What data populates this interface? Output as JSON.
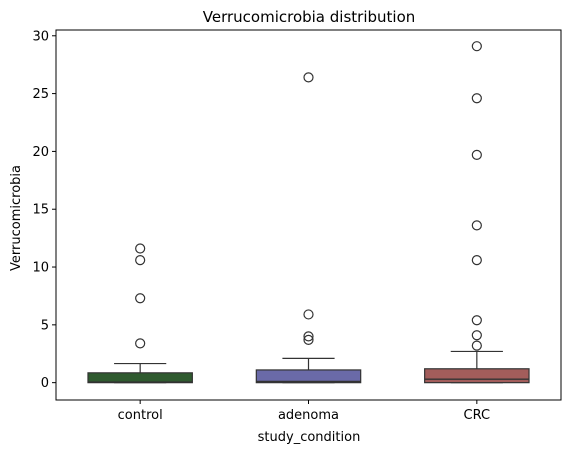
{
  "chart_data": {
    "type": "box",
    "title": "Verrucomicrobia distribution",
    "xlabel": "study_condition",
    "ylabel": "Verrucomicrobia",
    "categories": [
      "control",
      "adenoma",
      "CRC"
    ],
    "ylim": [
      -1.5,
      30.5
    ],
    "yticks": [
      0,
      5,
      10,
      15,
      20,
      25,
      30
    ],
    "grid": false,
    "boxes": [
      {
        "category": "control",
        "color": "#2f5a2f",
        "q1": 0.0,
        "median": 0.05,
        "q3": 0.85,
        "whisker_low": 0.0,
        "whisker_high": 1.65,
        "outliers": [
          3.4,
          7.3,
          10.6,
          11.6
        ]
      },
      {
        "category": "adenoma",
        "color": "#6a6aa8",
        "q1": 0.0,
        "median": 0.1,
        "q3": 1.1,
        "whisker_low": 0.0,
        "whisker_high": 2.1,
        "outliers": [
          3.7,
          4.0,
          5.9,
          26.4
        ]
      },
      {
        "category": "CRC",
        "color": "#a35d5b",
        "q1": 0.0,
        "median": 0.3,
        "q3": 1.2,
        "whisker_low": 0.0,
        "whisker_high": 2.7,
        "outliers": [
          3.2,
          4.1,
          5.4,
          10.6,
          13.6,
          19.7,
          24.6,
          29.1
        ]
      }
    ]
  }
}
